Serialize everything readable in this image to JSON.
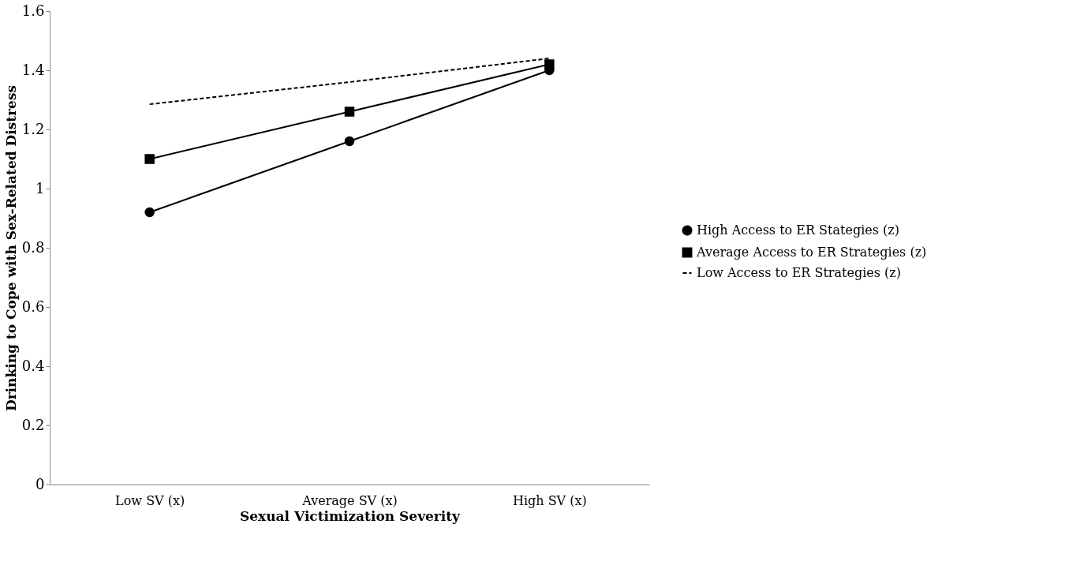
{
  "chart_data": {
    "type": "line",
    "xlabel": "Sexual Victimization Severity",
    "ylabel": "Drinking to Cope with Sex-Related Distress",
    "categories": [
      "Low SV (x)",
      "Average SV (x)",
      "High SV (x)"
    ],
    "series": [
      {
        "name": "High Access to ER Stategies (z)",
        "color": "#000000",
        "marker": "circle",
        "line_style": "solid",
        "values": [
          0.92,
          1.16,
          1.4
        ]
      },
      {
        "name": "Average Access to ER Strategies (z)",
        "color": "#000000",
        "marker": "square",
        "line_style": "solid",
        "values": [
          1.1,
          1.26,
          1.42
        ]
      },
      {
        "name": "Low Access to ER Strategies (z)",
        "color": "#000000",
        "marker": "none",
        "line_style": "dashed",
        "values": [
          1.285,
          1.36,
          1.44
        ]
      }
    ],
    "ylim": [
      0,
      1.6
    ],
    "yticks": [
      0,
      0.2,
      0.4,
      0.6,
      0.8,
      1,
      1.2,
      1.4,
      1.6
    ],
    "grid": false,
    "legend": "right"
  }
}
